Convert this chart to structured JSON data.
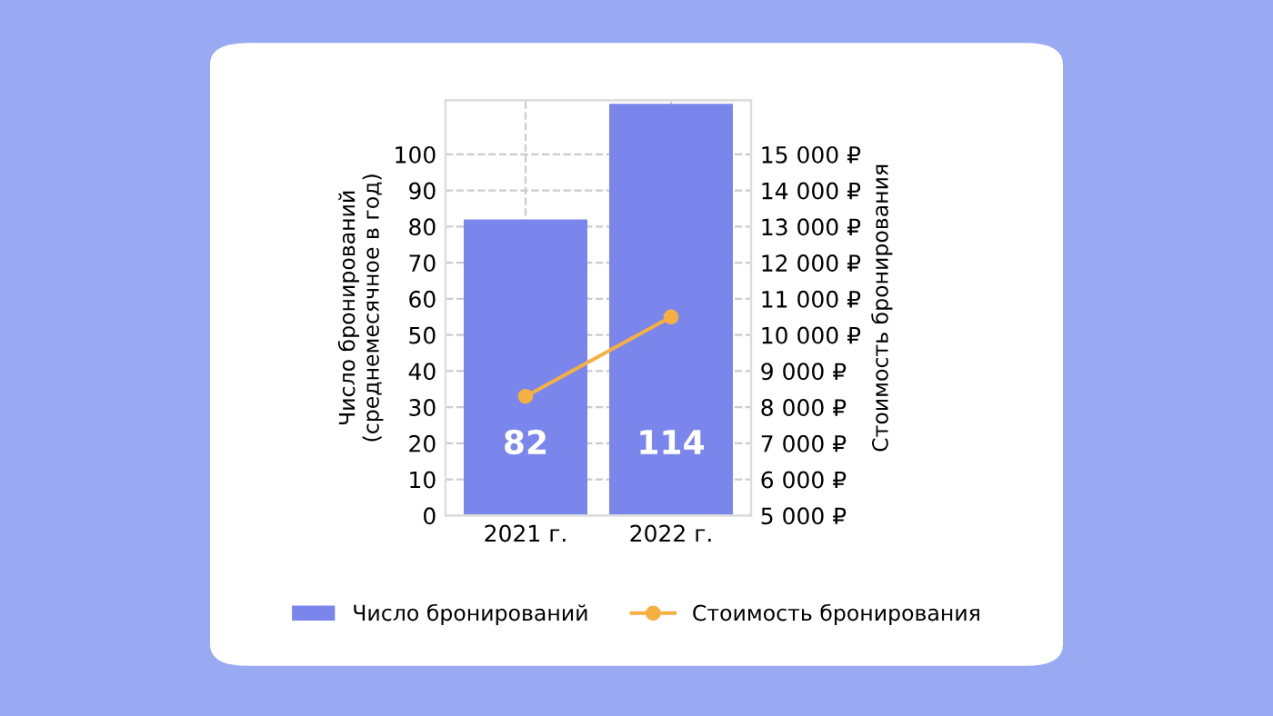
{
  "chart_data": {
    "type": "bar",
    "categories": [
      "2021 г.",
      "2022 г."
    ],
    "ylabel": "Число бронирований\n(среднемесячное в год)",
    "y2label": "Стоимость бронирования",
    "series": [
      {
        "name": "Число бронирований",
        "color": "#7b86ec",
        "values": [
          82,
          114
        ],
        "value_labels": [
          "82",
          "114"
        ]
      },
      {
        "name": "Стоимость бронирования",
        "type": "line",
        "axis": "y2",
        "color": "#f5b041",
        "values": [
          8300,
          10500
        ]
      }
    ],
    "ylim": [
      0,
      115
    ],
    "yticks": [
      0,
      10,
      20,
      30,
      40,
      50,
      60,
      70,
      80,
      90,
      100
    ],
    "y2lim": [
      5000,
      16500
    ],
    "y2ticks": [
      {
        "value": 5000,
        "label": "5 000 ₽"
      },
      {
        "value": 6000,
        "label": "6 000 ₽"
      },
      {
        "value": 7000,
        "label": "7 000 ₽"
      },
      {
        "value": 8000,
        "label": "8 000 ₽"
      },
      {
        "value": 9000,
        "label": "9 000 ₽"
      },
      {
        "value": 10000,
        "label": "10 000 ₽"
      },
      {
        "value": 11000,
        "label": "11 000 ₽"
      },
      {
        "value": 12000,
        "label": "12 000 ₽"
      },
      {
        "value": 13000,
        "label": "13 000 ₽"
      },
      {
        "value": 14000,
        "label": "14 000 ₽"
      },
      {
        "value": 15000,
        "label": "15 000 ₽"
      }
    ],
    "grid": true,
    "legend": "bottom",
    "marker": "circle"
  }
}
